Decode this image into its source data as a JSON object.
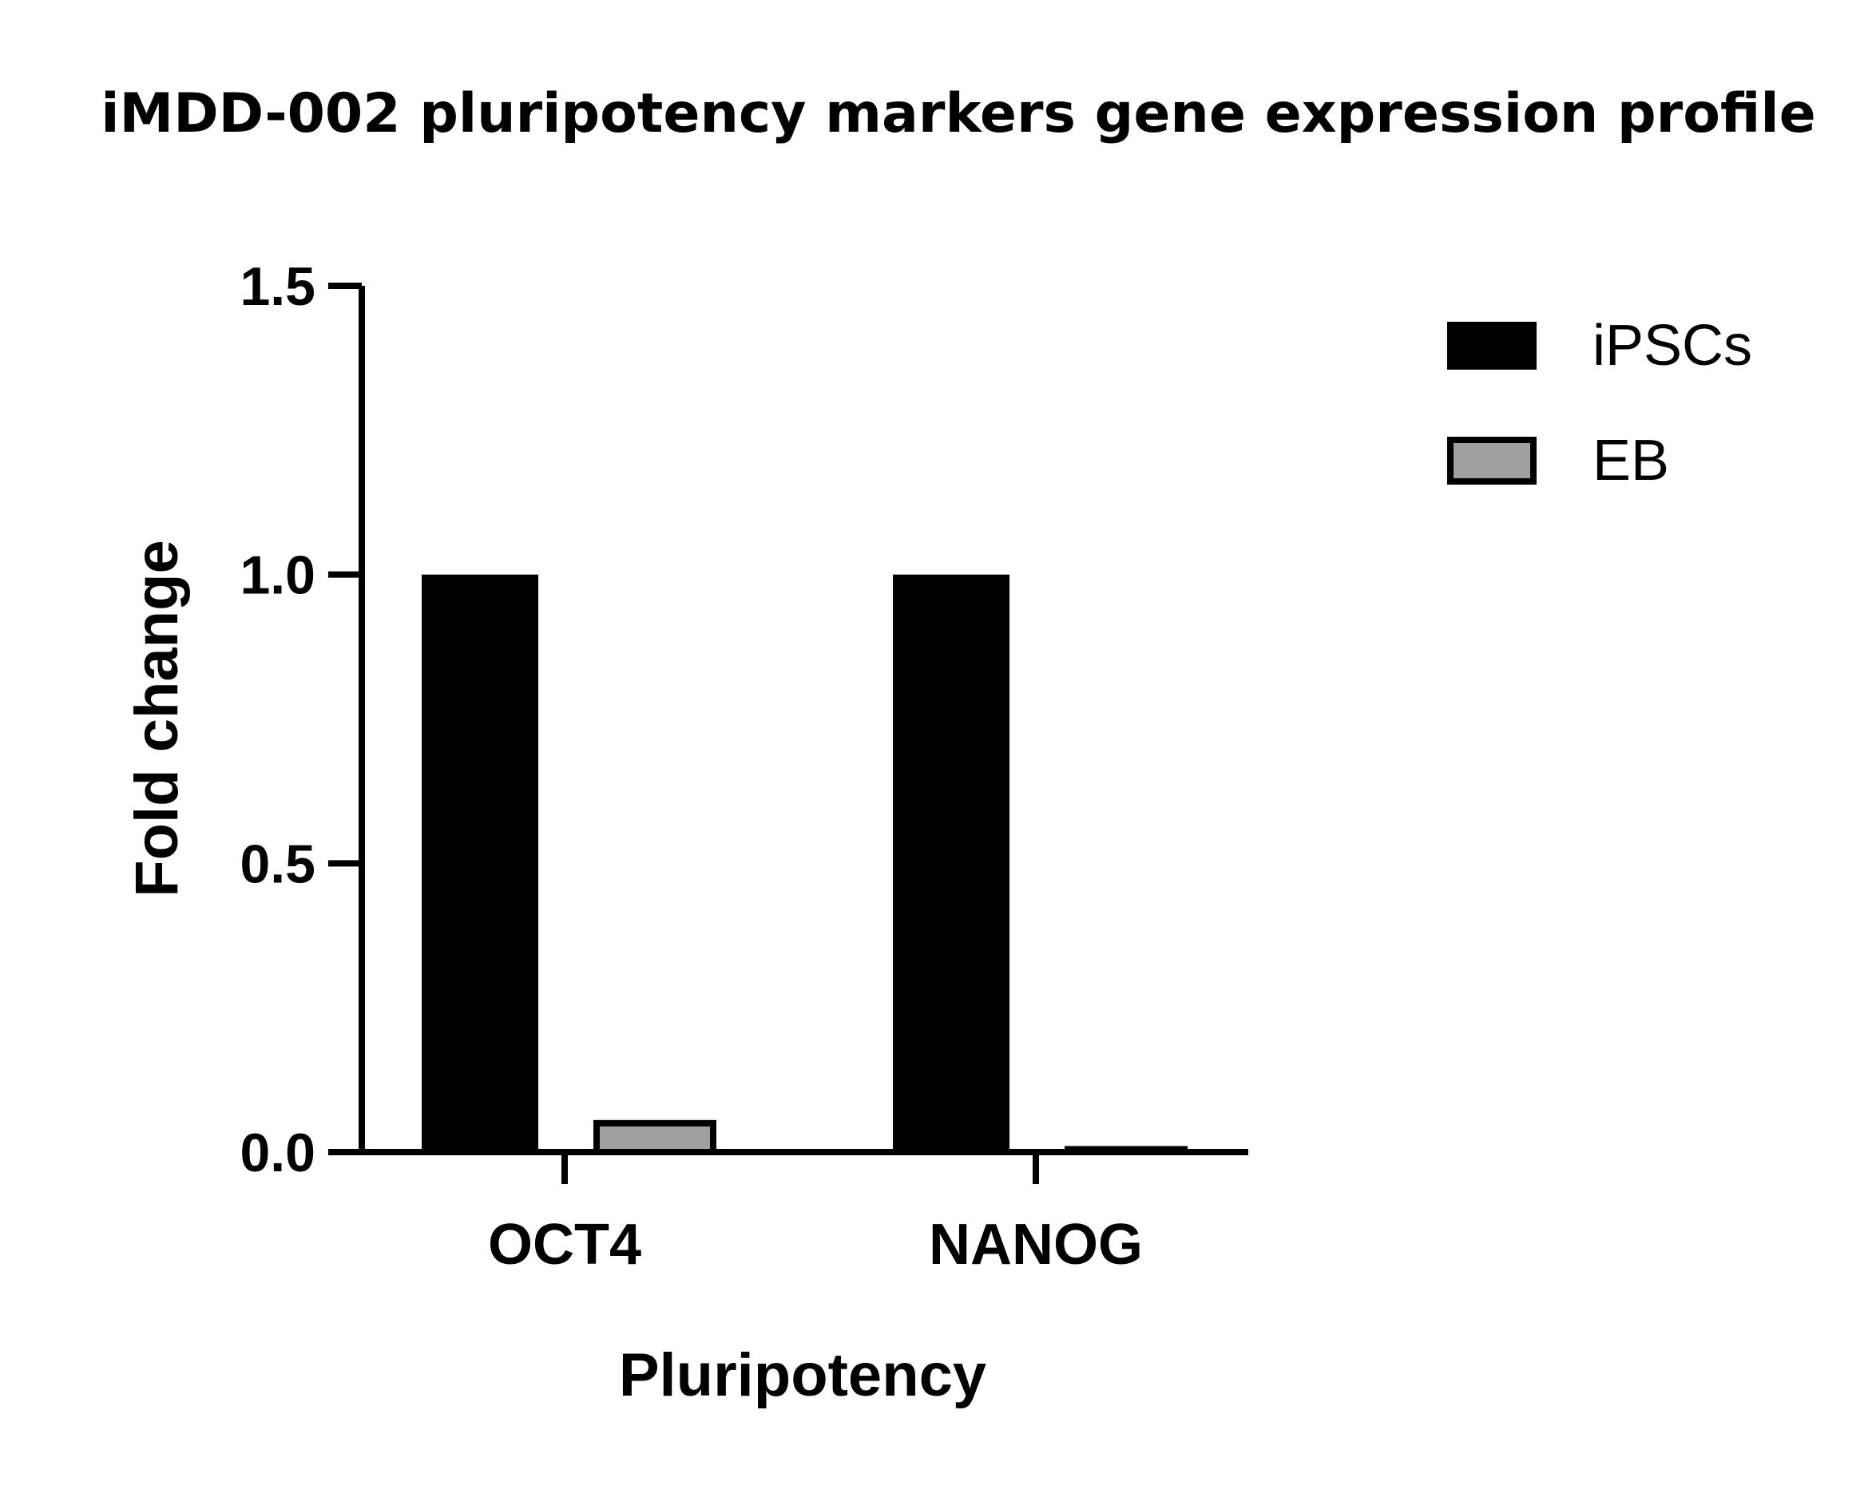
{
  "chart_data": {
    "type": "bar",
    "title": "iMDD-002 pluripotency markers gene expression profile",
    "xlabel": "Pluripotency",
    "ylabel": "Fold change",
    "categories": [
      "OCT4",
      "NANOG"
    ],
    "series": [
      {
        "name": "iPSCs",
        "values": [
          1.0,
          1.0
        ],
        "color": "#000000"
      },
      {
        "name": "EB",
        "values": [
          0.05,
          0.005
        ],
        "color": "#a0a0a0"
      }
    ],
    "ylim": [
      0,
      1.5
    ],
    "yticks": [
      "0.0",
      "0.5",
      "1.0",
      "1.5"
    ],
    "ytick_values": [
      0,
      0.5,
      1.0,
      1.5
    ],
    "grid": false,
    "legend_position": "top-right"
  }
}
